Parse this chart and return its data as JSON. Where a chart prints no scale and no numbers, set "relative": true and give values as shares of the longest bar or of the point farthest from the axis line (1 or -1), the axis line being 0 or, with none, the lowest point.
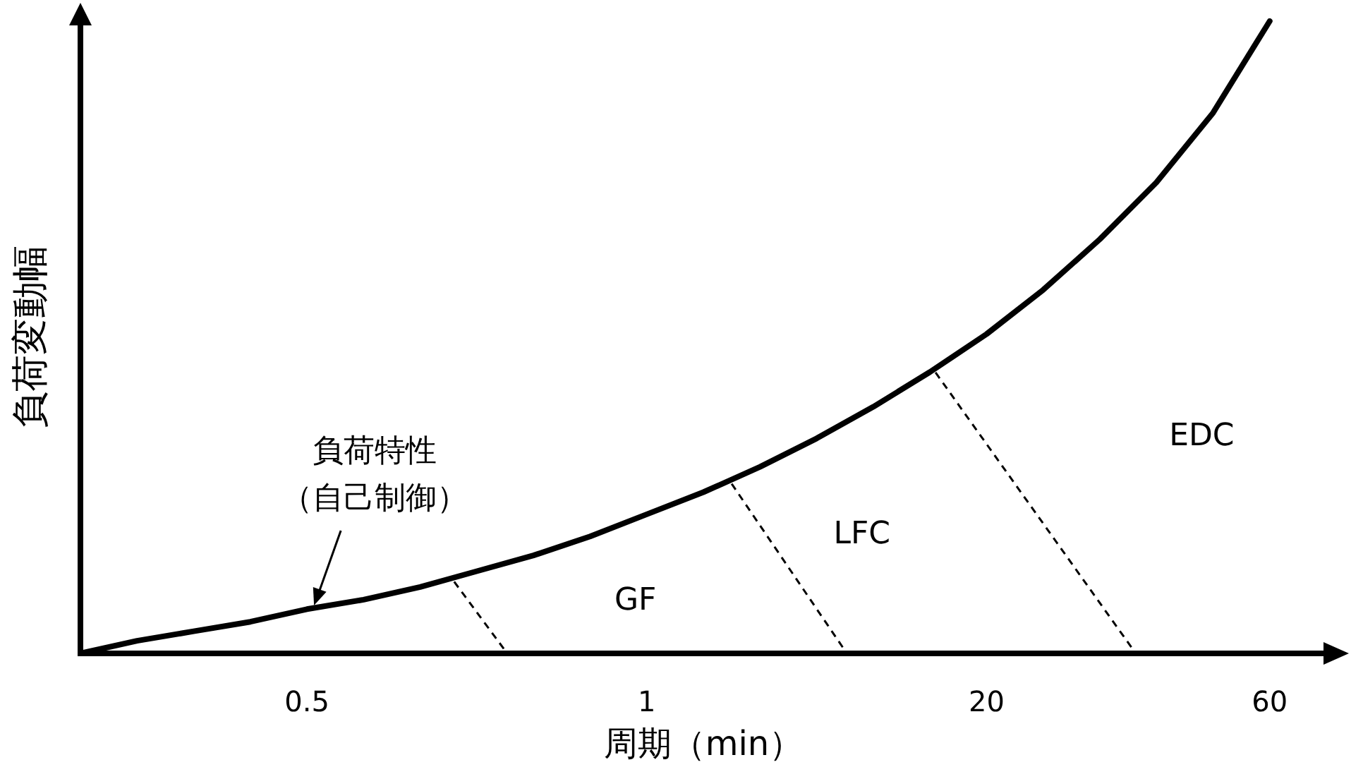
{
  "chart_data": {
    "type": "line",
    "relative": true,
    "xlabel": "周期（min）",
    "ylabel": "負荷変動幅",
    "categories": [
      null,
      null,
      null,
      null,
      "0.5",
      null,
      null,
      null,
      null,
      null,
      "1",
      null,
      null,
      null,
      null,
      null,
      "20",
      null,
      null,
      null,
      null,
      "60",
      null
    ],
    "series": [
      {
        "color": "#000000",
        "values": [
          0,
          0.02,
          0.035,
          0.05,
          0.07,
          0.085,
          0.105,
          0.13,
          0.155,
          0.185,
          0.22,
          0.255,
          0.295,
          0.34,
          0.39,
          0.445,
          0.505,
          0.575,
          0.655,
          0.745,
          0.855,
          1,
          null
        ]
      }
    ],
    "annotations": [
      "負荷特性",
      "（自己制御）",
      "GF",
      "LFC",
      "EDC"
    ],
    "grid": false,
    "marker": "none",
    "line_style": "solid"
  }
}
